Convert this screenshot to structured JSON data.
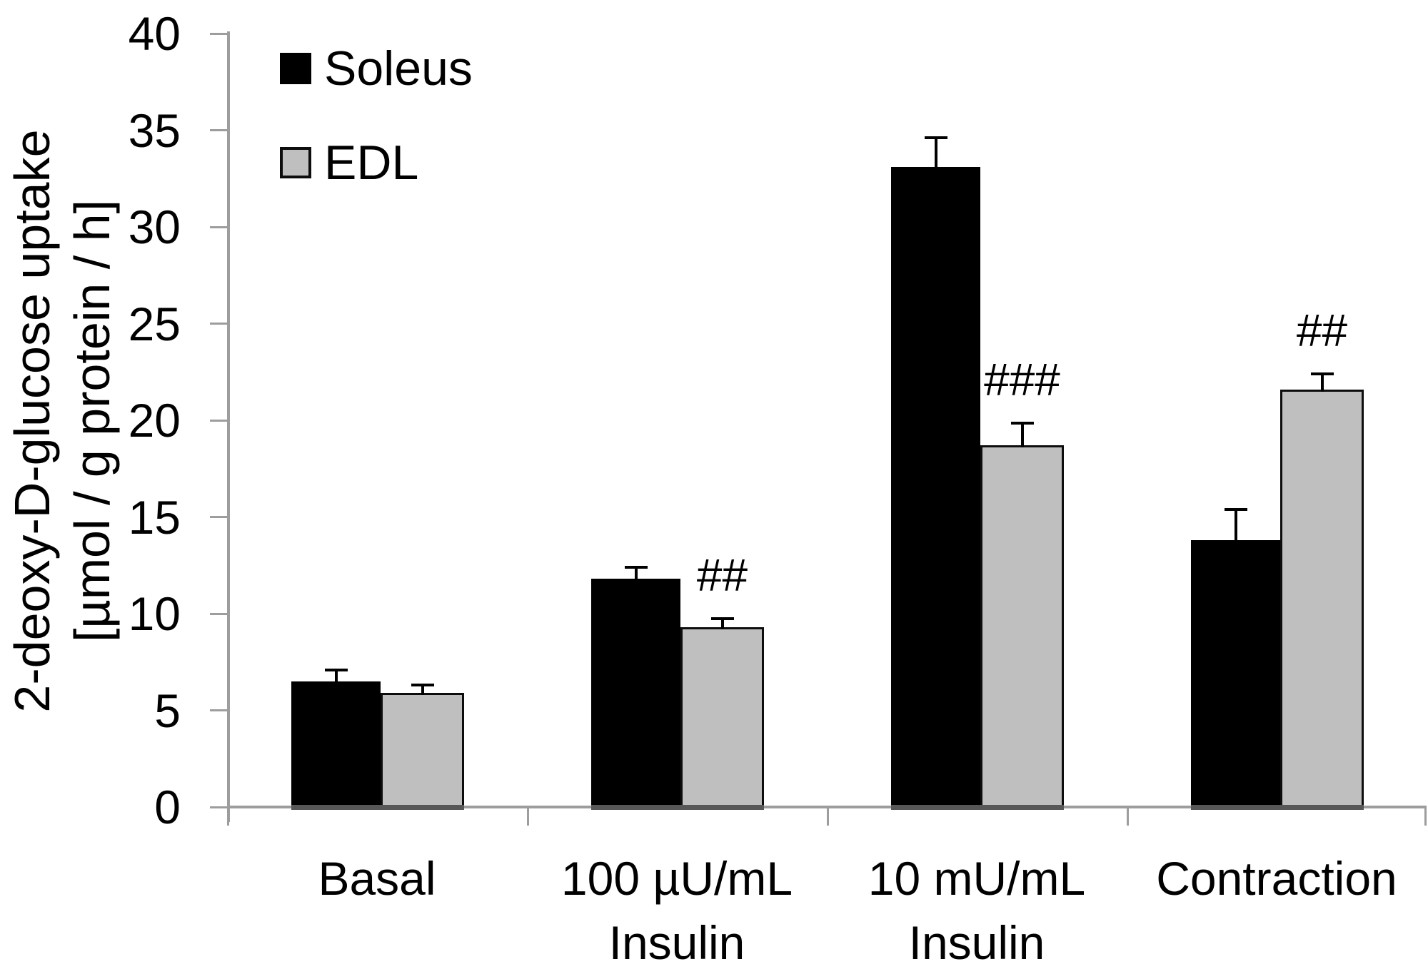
{
  "chart_data": {
    "type": "bar",
    "title": "",
    "ylabel_lines": [
      "2-deoxy-D-glucose uptake",
      "[µmol / g protein / h]"
    ],
    "xlabel": "",
    "ylim": [
      0,
      40
    ],
    "y_ticks": [
      0,
      5,
      10,
      15,
      20,
      25,
      30,
      35,
      40
    ],
    "grid": false,
    "legend_position": "top-left-inside",
    "categories": [
      {
        "lines": [
          "Basal"
        ]
      },
      {
        "lines": [
          "100 µU/mL",
          "Insulin"
        ]
      },
      {
        "lines": [
          "10 mU/mL",
          "Insulin"
        ]
      },
      {
        "lines": [
          "Contraction"
        ]
      }
    ],
    "series": [
      {
        "name": "Soleus",
        "color": "#000000",
        "border_color": "#000000",
        "values": [
          6.5,
          11.8,
          33.1,
          13.8
        ],
        "errors": [
          0.6,
          0.6,
          1.5,
          1.6
        ],
        "annotations": [
          "",
          "",
          "",
          ""
        ]
      },
      {
        "name": "EDL",
        "color": "#bfbfbf",
        "border_color": "#0d0d0d",
        "values": [
          5.9,
          9.3,
          18.7,
          21.6
        ],
        "errors": [
          0.4,
          0.45,
          1.15,
          0.8
        ],
        "annotations": [
          "",
          "##",
          "###",
          "##"
        ]
      }
    ]
  },
  "colors": {
    "axis": "#9d9d9d",
    "error_bar": "#000000",
    "base_strip": "#575757",
    "text": "#000000",
    "background": "#ffffff"
  }
}
